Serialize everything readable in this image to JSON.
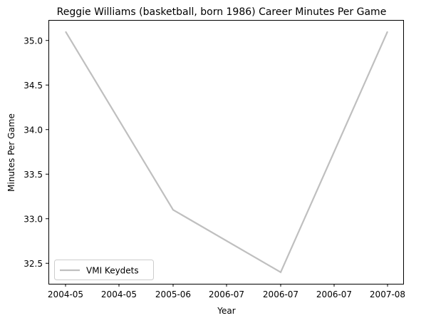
{
  "chart_data": {
    "type": "line",
    "title": "Reggie Williams (basketball, born 1986) Career Minutes Per Game",
    "xlabel": "Year",
    "ylabel": "Minutes Per Game",
    "x_tick_labels": [
      "2004-05",
      "2004-05",
      "2005-06",
      "2006-07",
      "2006-07",
      "2006-07",
      "2007-08"
    ],
    "y_ticks": [
      32.5,
      33.0,
      33.5,
      34.0,
      34.5,
      35.0
    ],
    "y_tick_labels": [
      "32.5",
      "33.0",
      "33.5",
      "34.0",
      "34.5",
      "35.0"
    ],
    "ylim": [
      32.27,
      35.23
    ],
    "grid": false,
    "legend_position": "lower-left",
    "series": [
      {
        "name": "VMI Keydets",
        "color": "#bfbfbf",
        "x": [
          "2004-05",
          "2005-06",
          "2006-07",
          "2007-08"
        ],
        "y": [
          35.1,
          33.1,
          32.4,
          35.1
        ]
      }
    ]
  }
}
